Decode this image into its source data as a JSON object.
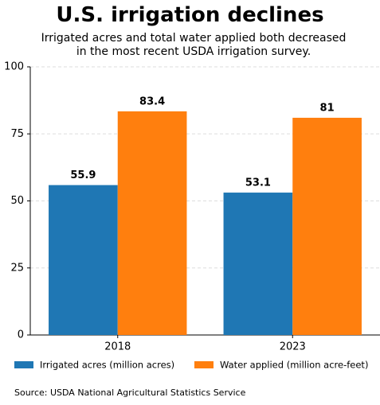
{
  "chart_data": {
    "type": "bar",
    "title": "U.S. irrigation declines",
    "subtitle": "Irrigated acres and total water applied both decreased in the most recent USDA irrigation survey.",
    "categories": [
      "2018",
      "2023"
    ],
    "series": [
      {
        "name": "Irrigated acres (million acres)",
        "color": "#1f77b4",
        "values": [
          55.9,
          53.1
        ]
      },
      {
        "name": "Water applied (million acre-feet)",
        "color": "#ff7f0e",
        "values": [
          83.4,
          81
        ]
      }
    ],
    "ylim": [
      0,
      100
    ],
    "yticks": [
      0,
      25,
      50,
      75,
      100
    ],
    "grid": true,
    "source": "Source: USDA National Agricultural Statistics Service"
  }
}
